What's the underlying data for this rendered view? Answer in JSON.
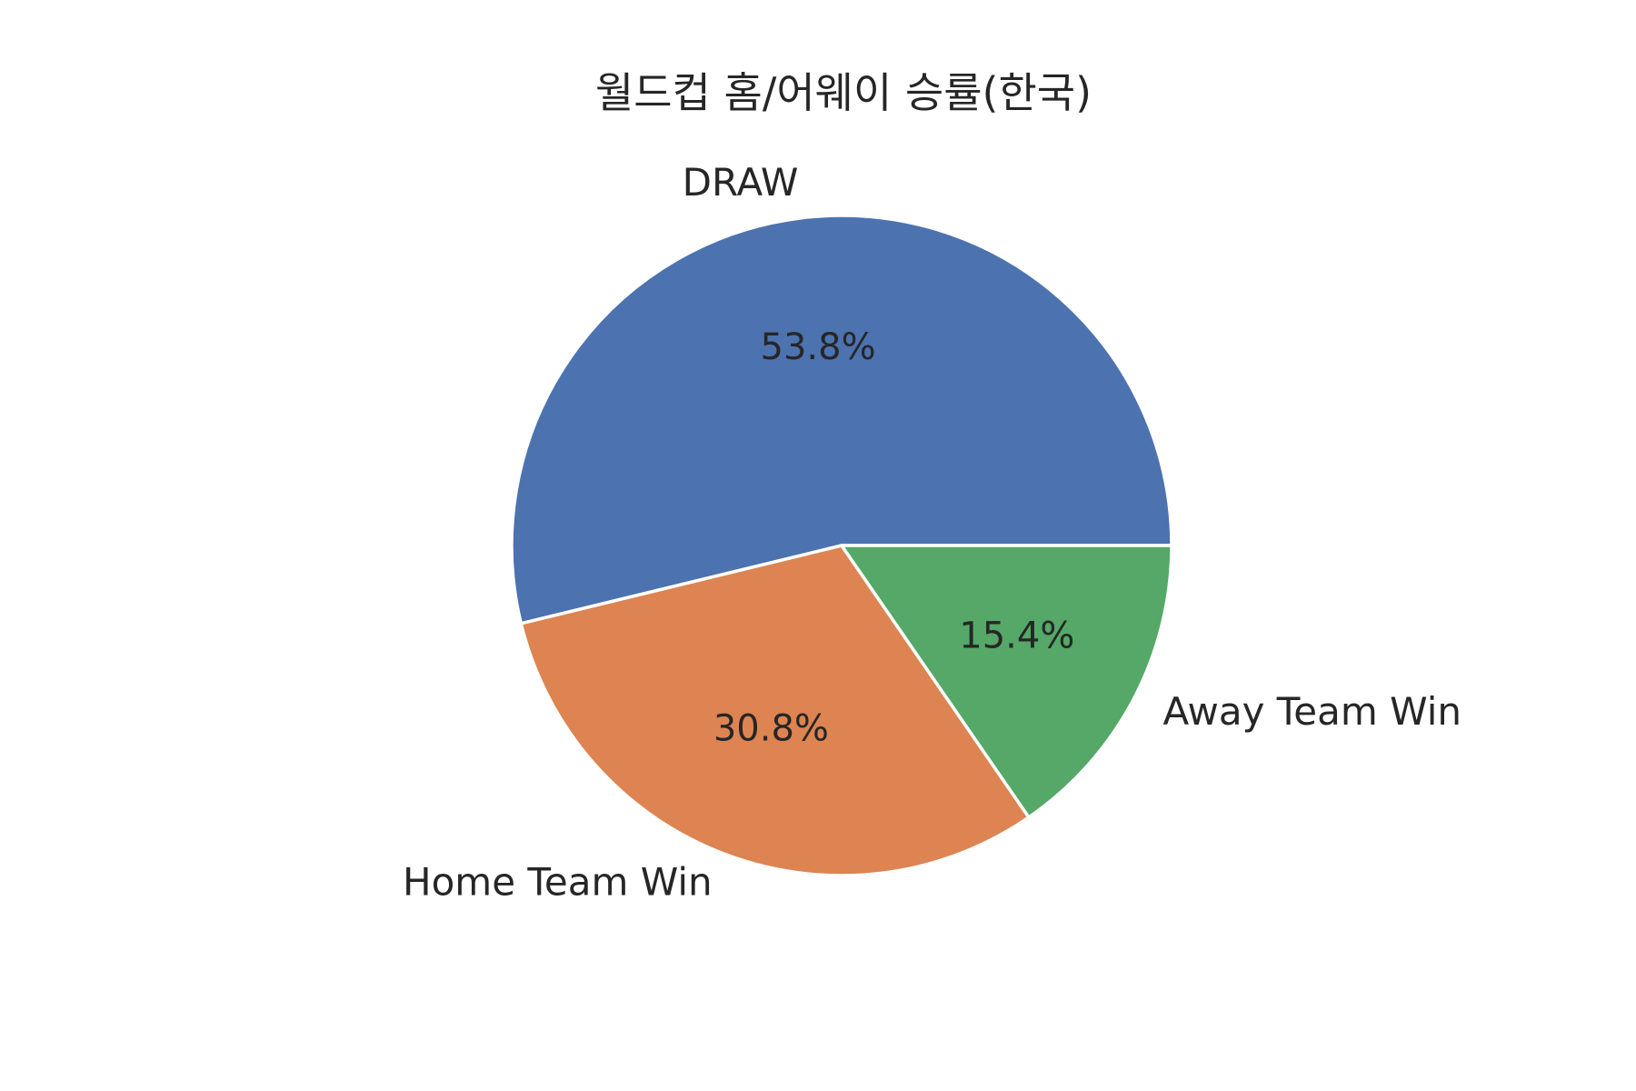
{
  "chart_data": {
    "type": "pie",
    "title": "월드컵 홈/어웨이 승률(한국)",
    "start_angle": 0,
    "direction": "counterclockwise",
    "slices": [
      {
        "label": "DRAW",
        "value": 53.8,
        "pct_label": "53.8%",
        "color": "#4c72b0"
      },
      {
        "label": "Home Team Win",
        "value": 30.8,
        "pct_label": "30.8%",
        "color": "#dd8452"
      },
      {
        "label": "Away Team Win",
        "value": 15.4,
        "pct_label": "15.4%",
        "color": "#55a868"
      }
    ]
  }
}
